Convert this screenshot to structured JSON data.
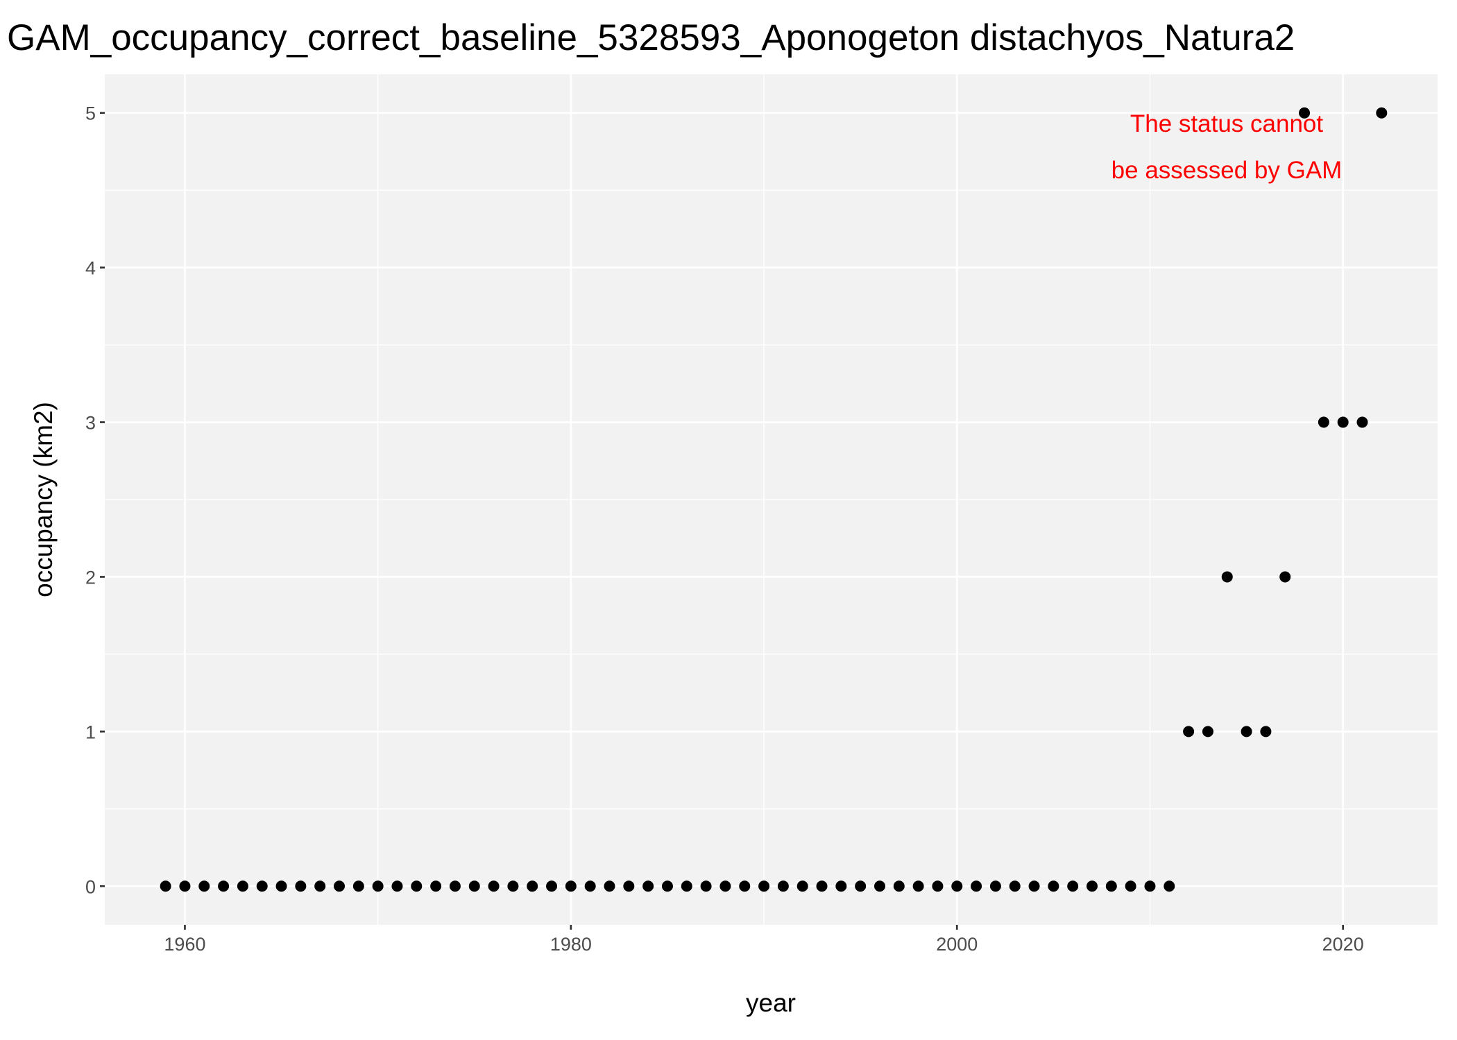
{
  "chart_data": {
    "type": "scatter",
    "title": "GAM_occupancy_correct_baseline_5328593_Aponogeton distachyos_Natura2",
    "x_label": "year",
    "y_label": "occupancy (km2)",
    "annotation": [
      "The status cannot",
      "be assessed by GAM"
    ],
    "annotation_color": "#ff0000",
    "x": [
      1959,
      1960,
      1961,
      1962,
      1963,
      1964,
      1965,
      1966,
      1967,
      1968,
      1969,
      1970,
      1971,
      1972,
      1973,
      1974,
      1975,
      1976,
      1977,
      1978,
      1979,
      1980,
      1981,
      1982,
      1983,
      1984,
      1985,
      1986,
      1987,
      1988,
      1989,
      1990,
      1991,
      1992,
      1993,
      1994,
      1995,
      1996,
      1997,
      1998,
      1999,
      2000,
      2001,
      2002,
      2003,
      2004,
      2005,
      2006,
      2007,
      2008,
      2009,
      2010,
      2011,
      2012,
      2013,
      2014,
      2015,
      2016,
      2017,
      2018,
      2019,
      2020,
      2021,
      2022
    ],
    "values": [
      0,
      0,
      0,
      0,
      0,
      0,
      0,
      0,
      0,
      0,
      0,
      0,
      0,
      0,
      0,
      0,
      0,
      0,
      0,
      0,
      0,
      0,
      0,
      0,
      0,
      0,
      0,
      0,
      0,
      0,
      0,
      0,
      0,
      0,
      0,
      0,
      0,
      0,
      0,
      0,
      0,
      0,
      0,
      0,
      0,
      0,
      0,
      0,
      0,
      0,
      0,
      0,
      0,
      1,
      1,
      2,
      1,
      1,
      2,
      5,
      3,
      3,
      3,
      5
    ],
    "color": "#000000",
    "xlim": [
      1955.85,
      2024.9
    ],
    "xticks": [
      1960,
      1980,
      2000,
      2020
    ],
    "ylim": [
      -0.25,
      5.25
    ],
    "yticks": [
      0,
      1,
      2,
      3,
      4,
      5
    ],
    "grid": true
  }
}
